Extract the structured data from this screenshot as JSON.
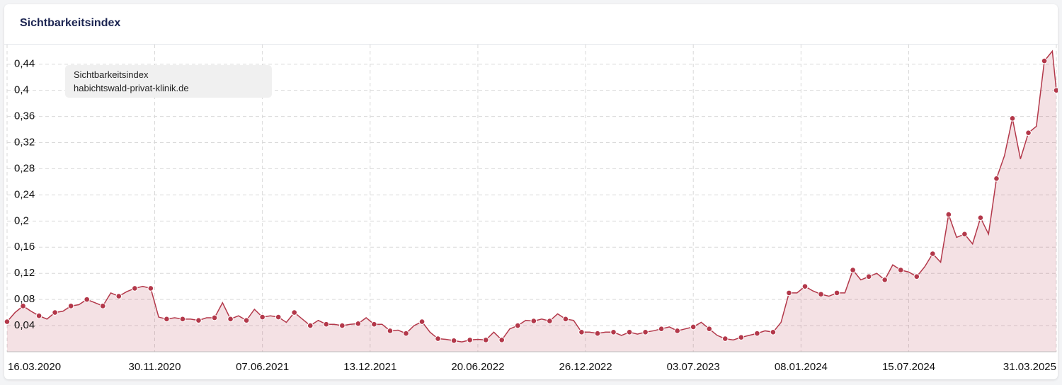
{
  "chart_data": {
    "type": "line",
    "title": "Sichtbarkeitsindex",
    "legend_title": "Sichtbarkeitsindex",
    "x": [
      "16.03.2020",
      "30.03.2020",
      "13.04.2020",
      "27.04.2020",
      "11.05.2020",
      "25.05.2020",
      "08.06.2020",
      "22.06.2020",
      "06.07.2020",
      "20.07.2020",
      "03.08.2020",
      "17.08.2020",
      "31.08.2020",
      "14.09.2020",
      "28.09.2020",
      "12.10.2020",
      "26.10.2020",
      "09.11.2020",
      "23.11.2020",
      "07.12.2020",
      "21.12.2020",
      "04.01.2021",
      "18.01.2021",
      "01.02.2021",
      "15.02.2021",
      "01.03.2021",
      "15.03.2021",
      "29.03.2021",
      "12.04.2021",
      "26.04.2021",
      "10.05.2021",
      "24.05.2021",
      "07.06.2021",
      "21.06.2021",
      "05.07.2021",
      "19.07.2021",
      "02.08.2021",
      "16.08.2021",
      "30.08.2021",
      "13.09.2021",
      "27.09.2021",
      "11.10.2021",
      "25.10.2021",
      "08.11.2021",
      "22.11.2021",
      "06.12.2021",
      "20.12.2021",
      "03.01.2022",
      "17.01.2022",
      "31.01.2022",
      "14.02.2022",
      "28.02.2022",
      "14.03.2022",
      "28.03.2022",
      "11.04.2022",
      "25.04.2022",
      "09.05.2022",
      "23.05.2022",
      "06.06.2022",
      "20.06.2022",
      "04.07.2022",
      "18.07.2022",
      "01.08.2022",
      "15.08.2022",
      "29.08.2022",
      "12.09.2022",
      "26.09.2022",
      "10.10.2022",
      "24.10.2022",
      "07.11.2022",
      "21.11.2022",
      "05.12.2022",
      "19.12.2022",
      "02.01.2023",
      "16.01.2023",
      "30.01.2023",
      "13.02.2023",
      "27.02.2023",
      "13.03.2023",
      "27.03.2023",
      "10.04.2023",
      "24.04.2023",
      "08.05.2023",
      "22.05.2023",
      "05.06.2023",
      "19.06.2023",
      "03.07.2023",
      "17.07.2023",
      "31.07.2023",
      "14.08.2023",
      "28.08.2023",
      "11.09.2023",
      "25.09.2023",
      "09.10.2023",
      "23.10.2023",
      "06.11.2023",
      "20.11.2023",
      "04.12.2023",
      "18.12.2023",
      "01.01.2024",
      "15.01.2024",
      "29.01.2024",
      "12.02.2024",
      "26.02.2024",
      "11.03.2024",
      "25.03.2024",
      "08.04.2024",
      "22.04.2024",
      "06.05.2024",
      "20.05.2024",
      "03.06.2024",
      "17.06.2024",
      "01.07.2024",
      "15.07.2024",
      "29.07.2024",
      "12.08.2024",
      "26.08.2024",
      "09.09.2024",
      "23.09.2024",
      "07.10.2024",
      "21.10.2024",
      "04.11.2024",
      "18.11.2024",
      "02.12.2024",
      "16.12.2024",
      "30.12.2024",
      "13.01.2025",
      "27.01.2025",
      "10.02.2025",
      "24.02.2025",
      "10.03.2025",
      "24.03.2025",
      "31.03.2025"
    ],
    "series": [
      {
        "name": "habichtswald-privat-klinik.de",
        "color": "#b3384a",
        "values": [
          0.046,
          0.06,
          0.07,
          0.062,
          0.055,
          0.05,
          0.06,
          0.062,
          0.07,
          0.072,
          0.08,
          0.075,
          0.07,
          0.09,
          0.085,
          0.092,
          0.097,
          0.1,
          0.097,
          0.053,
          0.05,
          0.052,
          0.05,
          0.05,
          0.048,
          0.052,
          0.052,
          0.075,
          0.05,
          0.055,
          0.048,
          0.065,
          0.053,
          0.055,
          0.053,
          0.045,
          0.06,
          0.05,
          0.04,
          0.048,
          0.042,
          0.042,
          0.04,
          0.042,
          0.043,
          0.052,
          0.042,
          0.042,
          0.032,
          0.033,
          0.028,
          0.04,
          0.046,
          0.03,
          0.02,
          0.019,
          0.017,
          0.015,
          0.018,
          0.019,
          0.018,
          0.03,
          0.018,
          0.035,
          0.04,
          0.048,
          0.047,
          0.05,
          0.047,
          0.058,
          0.05,
          0.048,
          0.03,
          0.03,
          0.028,
          0.03,
          0.03,
          0.025,
          0.03,
          0.027,
          0.03,
          0.032,
          0.035,
          0.038,
          0.032,
          0.035,
          0.038,
          0.045,
          0.035,
          0.025,
          0.02,
          0.018,
          0.022,
          0.025,
          0.028,
          0.032,
          0.03,
          0.045,
          0.09,
          0.09,
          0.1,
          0.093,
          0.088,
          0.085,
          0.09,
          0.09,
          0.125,
          0.11,
          0.115,
          0.12,
          0.11,
          0.133,
          0.125,
          0.122,
          0.115,
          0.13,
          0.15,
          0.137,
          0.21,
          0.175,
          0.18,
          0.165,
          0.205,
          0.18,
          0.265,
          0.3,
          0.357,
          0.295,
          0.335,
          0.345,
          0.445,
          0.46,
          0.4
        ]
      }
    ],
    "xlim": [
      "16.03.2020",
      "31.03.2025"
    ],
    "xticks": [
      "16.03.2020",
      "30.11.2020",
      "07.06.2021",
      "13.12.2021",
      "20.06.2022",
      "26.12.2022",
      "03.07.2023",
      "08.01.2024",
      "15.07.2024",
      "31.03.2025"
    ],
    "ylim": [
      0,
      0.47
    ],
    "yticks": [
      {
        "value": 0.04,
        "label": "0,04"
      },
      {
        "value": 0.08,
        "label": "0,08"
      },
      {
        "value": 0.12,
        "label": "0,12"
      },
      {
        "value": 0.16,
        "label": "0,16"
      },
      {
        "value": 0.2,
        "label": "0,2"
      },
      {
        "value": 0.24,
        "label": "0,24"
      },
      {
        "value": 0.28,
        "label": "0,28"
      },
      {
        "value": 0.32,
        "label": "0,32"
      },
      {
        "value": 0.36,
        "label": "0,36"
      },
      {
        "value": 0.4,
        "label": "0,4"
      },
      {
        "value": 0.44,
        "label": "0,44"
      }
    ],
    "grid": true
  }
}
